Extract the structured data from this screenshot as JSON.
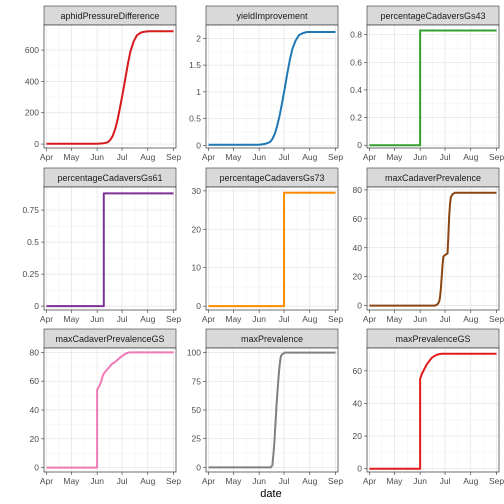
{
  "chart_data": {
    "type": "line",
    "xlabel": "date",
    "x_ticks": [
      "Apr",
      "May",
      "Jun",
      "Jul",
      "Aug",
      "Sep"
    ],
    "x_tick_days": [
      91,
      121,
      152,
      182,
      213,
      244
    ],
    "xlim_days": [
      88,
      247
    ],
    "facets": [
      {
        "name": "aphidPressureDifference",
        "color": "#d7191c",
        "yticks": [
          0,
          200,
          400,
          600
        ],
        "ylim": [
          -25,
          760
        ],
        "x": [
          91,
          152,
          160,
          165,
          168,
          171,
          174,
          177,
          180,
          183,
          186,
          189,
          192,
          196,
          200,
          205,
          210,
          215,
          244
        ],
        "y": [
          2,
          2,
          5,
          12,
          28,
          55,
          100,
          165,
          245,
          330,
          420,
          510,
          590,
          655,
          695,
          712,
          718,
          720,
          720
        ]
      },
      {
        "name": "yieldImprovement",
        "color": "#1f78b4",
        "yticks": [
          0.0,
          0.5,
          1.0,
          1.5,
          2.0
        ],
        "ylim": [
          -0.05,
          2.25
        ],
        "x": [
          91,
          152,
          160,
          165,
          168,
          171,
          174,
          177,
          180,
          183,
          186,
          189,
          192,
          196,
          200,
          205,
          210,
          215,
          244
        ],
        "y": [
          0.01,
          0.01,
          0.03,
          0.06,
          0.12,
          0.22,
          0.38,
          0.58,
          0.82,
          1.08,
          1.35,
          1.6,
          1.8,
          1.96,
          2.06,
          2.1,
          2.12,
          2.12,
          2.12
        ]
      },
      {
        "name": "percentageCadaversGs43",
        "color": "#33a02c",
        "yticks": [
          0.0,
          0.2,
          0.4,
          0.6,
          0.8
        ],
        "ylim": [
          -0.02,
          0.87
        ],
        "x": [
          91,
          152,
          152,
          244
        ],
        "y": [
          0.0,
          0.0,
          0.83,
          0.83
        ]
      },
      {
        "name": "percentageCadaversGs61",
        "color": "#7b3294",
        "yticks": [
          0.0,
          0.25,
          0.5,
          0.75
        ],
        "ylim": [
          -0.03,
          0.93
        ],
        "x": [
          91,
          160,
          160,
          244
        ],
        "y": [
          0.0,
          0.0,
          0.88,
          0.88
        ]
      },
      {
        "name": "percentageCadaversGs73",
        "color": "#ff8c00",
        "yticks": [
          0,
          10,
          20,
          30
        ],
        "ylim": [
          -1,
          31
        ],
        "x": [
          91,
          182,
          182,
          244
        ],
        "y": [
          0,
          0,
          29.5,
          29.5
        ]
      },
      {
        "name": "maxCadaverPrevalence",
        "color": "#8b4513",
        "yticks": [
          0,
          20,
          40,
          60,
          80
        ],
        "ylim": [
          -3,
          82
        ],
        "x": [
          91,
          170,
          173,
          175,
          176,
          177,
          178,
          179,
          180,
          182,
          185,
          186,
          187,
          188,
          189,
          191,
          194,
          198,
          244
        ],
        "y": [
          0,
          0,
          1,
          3,
          6,
          12,
          20,
          28,
          34,
          35,
          36,
          48,
          62,
          70,
          75,
          77,
          78,
          78,
          78
        ]
      },
      {
        "name": "maxCadaverPrevalenceGS",
        "color": "#f178b4",
        "yticks": [
          0,
          20,
          40,
          60,
          80
        ],
        "ylim": [
          -3,
          83
        ],
        "x": [
          91,
          152,
          152,
          155,
          157,
          159,
          161,
          164,
          167,
          170,
          173,
          177,
          181,
          186,
          191,
          197,
          244
        ],
        "y": [
          0,
          0,
          54,
          57,
          60,
          64,
          66,
          68,
          70,
          72,
          73,
          75,
          77,
          79,
          80,
          80,
          80
        ]
      },
      {
        "name": "maxPrevalence",
        "color": "#808080",
        "yticks": [
          0,
          25,
          50,
          75,
          100
        ],
        "ylim": [
          -4,
          104
        ],
        "x": [
          91,
          166,
          168,
          169,
          170,
          171,
          172,
          173,
          174,
          175,
          176,
          177,
          178,
          179,
          181,
          183,
          244
        ],
        "y": [
          0,
          0,
          2,
          10,
          18,
          30,
          42,
          55,
          65,
          75,
          84,
          91,
          96,
          98,
          99,
          100,
          100
        ]
      },
      {
        "name": "maxPrevalenceGS",
        "color": "#e31a1c",
        "yticks": [
          0,
          20,
          40,
          60
        ],
        "ylim": [
          -2,
          74
        ],
        "x": [
          91,
          152,
          152,
          154,
          156,
          158,
          160,
          163,
          166,
          169,
          173,
          178,
          244
        ],
        "y": [
          0,
          0,
          55,
          58,
          60,
          62,
          64,
          66,
          68,
          69,
          70,
          70.5,
          70.5
        ]
      }
    ]
  }
}
